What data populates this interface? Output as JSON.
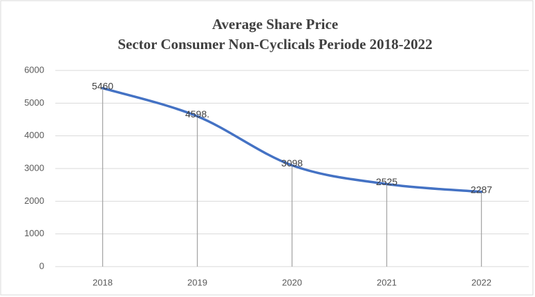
{
  "chart_data": {
    "type": "line",
    "title": "Average Share Price",
    "subtitle": "Sector Consumer Non-Cyclicals Periode 2018-2022",
    "categories": [
      "2018",
      "2019",
      "2020",
      "2021",
      "2022"
    ],
    "series": [
      {
        "name": "Average Share Price",
        "color": "#4472c4",
        "values": [
          5460,
          4598,
          3098,
          2525,
          2287
        ],
        "value_labels": [
          "5460",
          "4598.",
          "3098",
          "2525",
          "2287"
        ]
      }
    ],
    "ylim": [
      0,
      6000
    ],
    "yticks": [
      0,
      1000,
      2000,
      3000,
      4000,
      5000,
      6000
    ],
    "grid": true,
    "drop_lines": true
  }
}
